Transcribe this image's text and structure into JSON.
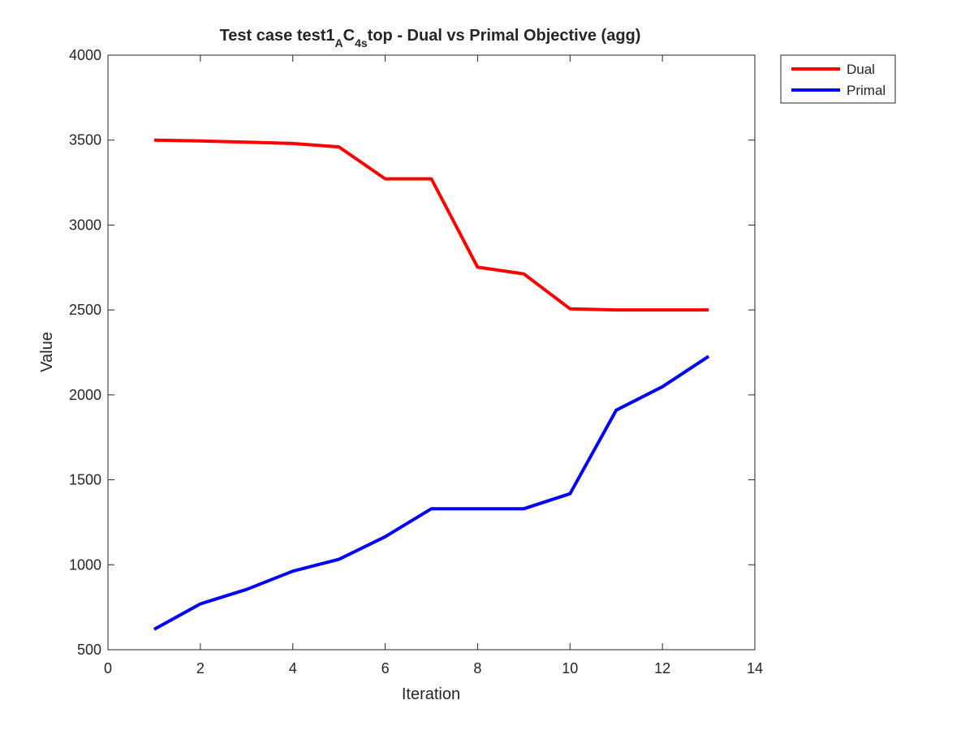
{
  "chart_data": {
    "type": "line",
    "title": {
      "prefix": "Test case test1",
      "sub1": "A",
      "mid": "C",
      "sub2": "4s",
      "suffix": "top - Dual vs Primal Objective (agg)"
    },
    "xlabel": "Iteration",
    "ylabel": "Value",
    "xlim": [
      0,
      14
    ],
    "ylim": [
      500,
      4000
    ],
    "xticks": [
      0,
      2,
      4,
      6,
      8,
      10,
      12,
      14
    ],
    "yticks": [
      500,
      1000,
      1500,
      2000,
      2500,
      3000,
      3500,
      4000
    ],
    "grid": false,
    "legend_position": "top-right outside",
    "x": [
      1,
      2,
      3,
      4,
      5,
      6,
      7,
      8,
      9,
      10,
      11,
      12,
      13
    ],
    "series": [
      {
        "name": "Dual",
        "color": "#ff0000",
        "values": [
          3500,
          3495,
          3488,
          3480,
          3460,
          3272,
          3272,
          2752,
          2712,
          2507,
          2500,
          2500,
          2500
        ]
      },
      {
        "name": "Primal",
        "color": "#0000ff",
        "values": [
          620,
          770,
          855,
          962,
          1032,
          1165,
          1330,
          1330,
          1330,
          1418,
          1910,
          2048,
          2227
        ]
      }
    ]
  }
}
